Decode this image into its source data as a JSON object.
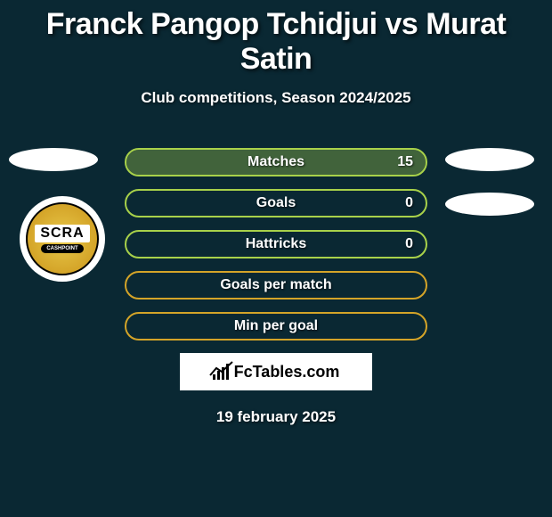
{
  "header": {
    "title": "Franck Pangop Tchidjui vs Murat Satin",
    "subtitle": "Club competitions, Season 2024/2025"
  },
  "colors": {
    "background": "#0a2833",
    "player1_accent": "#a8d14a",
    "player2_accent": "#d4a428",
    "text": "#ffffff"
  },
  "club_logo": {
    "main_text": "SCRA",
    "sub_text": "CASHPOINT"
  },
  "bars": [
    {
      "label": "Matches",
      "value": "15",
      "border_color": "#a8d14a",
      "fill_color": "#a8d14a",
      "fill_pct": 100
    },
    {
      "label": "Goals",
      "value": "0",
      "border_color": "#a8d14a",
      "fill_color": "#a8d14a",
      "fill_pct": 0
    },
    {
      "label": "Hattricks",
      "value": "0",
      "border_color": "#a8d14a",
      "fill_color": "#a8d14a",
      "fill_pct": 0
    },
    {
      "label": "Goals per match",
      "value": "",
      "border_color": "#d4a428",
      "fill_color": "#d4a428",
      "fill_pct": 0
    },
    {
      "label": "Min per goal",
      "value": "",
      "border_color": "#d4a428",
      "fill_color": "#d4a428",
      "fill_pct": 0
    }
  ],
  "brand": {
    "text": "FcTables.com"
  },
  "date": "19 february 2025"
}
